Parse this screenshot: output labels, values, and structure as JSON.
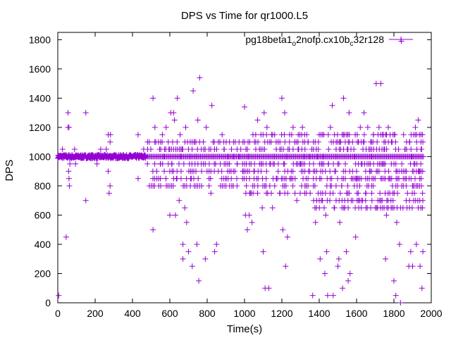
{
  "chart_data": {
    "type": "scatter",
    "title": "DPS vs Time for qr1000.L5",
    "xlabel": "Time(s)",
    "ylabel": "DPS",
    "xlim": [
      0,
      2000
    ],
    "ylim": [
      0,
      1850
    ],
    "xticks": [
      0,
      200,
      400,
      600,
      800,
      1000,
      1200,
      1400,
      1600,
      1800,
      2000
    ],
    "yticks": [
      0,
      200,
      400,
      600,
      800,
      1000,
      1200,
      1400,
      1600,
      1800
    ],
    "grid": false,
    "legend_position": "top-right",
    "marker": "plus",
    "series": [
      {
        "name_parts": [
          "pg18beta1",
          "o",
          "2nofp.cx10b",
          "c",
          "32r128"
        ],
        "color": "#9400d3",
        "points": [
          [
            5,
            50
          ],
          [
            15,
            1000
          ],
          [
            25,
            1050
          ],
          [
            35,
            1000
          ],
          [
            45,
            450
          ],
          [
            50,
            1000
          ],
          [
            55,
            1200
          ],
          [
            55,
            1300
          ],
          [
            58,
            900
          ],
          [
            60,
            850
          ],
          [
            60,
            1200
          ],
          [
            62,
            800
          ],
          [
            65,
            950
          ],
          [
            70,
            1000
          ],
          [
            80,
            1000
          ],
          [
            90,
            1050
          ],
          [
            95,
            950
          ],
          [
            100,
            1000
          ],
          [
            110,
            1000
          ],
          [
            130,
            1000
          ],
          [
            150,
            700
          ],
          [
            150,
            1300
          ],
          [
            160,
            1000
          ],
          [
            180,
            1000
          ],
          [
            200,
            1000
          ],
          [
            210,
            950
          ],
          [
            220,
            1000
          ],
          [
            230,
            1050
          ],
          [
            240,
            1000
          ],
          [
            250,
            1000
          ],
          [
            260,
            1050
          ],
          [
            270,
            900
          ],
          [
            270,
            1150
          ],
          [
            275,
            750
          ],
          [
            280,
            800
          ],
          [
            280,
            1100
          ],
          [
            282,
            1150
          ],
          [
            290,
            1000
          ],
          [
            300,
            1000
          ],
          [
            320,
            1000
          ],
          [
            340,
            1000
          ],
          [
            360,
            1000
          ],
          [
            380,
            1000
          ],
          [
            400,
            1000
          ],
          [
            420,
            1000
          ],
          [
            430,
            850
          ],
          [
            430,
            1150
          ],
          [
            450,
            1000
          ],
          [
            460,
            1050
          ],
          [
            480,
            950
          ],
          [
            490,
            1100
          ],
          [
            500,
            1000
          ],
          [
            510,
            1400
          ],
          [
            510,
            500
          ],
          [
            520,
            1200
          ],
          [
            525,
            1100
          ],
          [
            530,
            900
          ],
          [
            540,
            850
          ],
          [
            545,
            1050
          ],
          [
            550,
            950
          ],
          [
            560,
            1150
          ],
          [
            570,
            1000
          ],
          [
            580,
            1200
          ],
          [
            590,
            800
          ],
          [
            595,
            1050
          ],
          [
            600,
            600
          ],
          [
            605,
            1300
          ],
          [
            610,
            950
          ],
          [
            615,
            1100
          ],
          [
            620,
            1300
          ],
          [
            625,
            1250
          ],
          [
            630,
            600
          ],
          [
            635,
            850
          ],
          [
            640,
            1400
          ],
          [
            650,
            700
          ],
          [
            655,
            1150
          ],
          [
            660,
            1000
          ],
          [
            665,
            1050
          ],
          [
            670,
            300
          ],
          [
            670,
            400
          ],
          [
            675,
            950
          ],
          [
            680,
            650
          ],
          [
            685,
            1200
          ],
          [
            690,
            550
          ],
          [
            690,
            800
          ],
          [
            695,
            1100
          ],
          [
            700,
            350
          ],
          [
            705,
            950
          ],
          [
            710,
            1000
          ],
          [
            715,
            850
          ],
          [
            720,
            250
          ],
          [
            725,
            1450
          ],
          [
            730,
            1100
          ],
          [
            735,
            950
          ],
          [
            740,
            1000
          ],
          [
            745,
            400
          ],
          [
            750,
            1250
          ],
          [
            755,
            150
          ],
          [
            760,
            1540
          ],
          [
            770,
            900
          ],
          [
            780,
            950
          ],
          [
            790,
            300
          ],
          [
            795,
            1200
          ],
          [
            800,
            1000
          ],
          [
            810,
            1050
          ],
          [
            820,
            750
          ],
          [
            825,
            1350
          ],
          [
            830,
            1000
          ],
          [
            840,
            350
          ],
          [
            845,
            950
          ],
          [
            850,
            400
          ],
          [
            860,
            1100
          ],
          [
            870,
            950
          ],
          [
            880,
            1150
          ],
          [
            890,
            1050
          ],
          [
            900,
            850
          ],
          [
            910,
            1000
          ],
          [
            920,
            900
          ],
          [
            930,
            1050
          ],
          [
            940,
            1000
          ],
          [
            950,
            1100
          ],
          [
            960,
            950
          ],
          [
            970,
            1000
          ],
          [
            980,
            1050
          ],
          [
            990,
            900
          ],
          [
            1000,
            1340
          ],
          [
            1005,
            600
          ],
          [
            1010,
            850
          ],
          [
            1015,
            500
          ],
          [
            1020,
            1000
          ],
          [
            1025,
            600
          ],
          [
            1030,
            750
          ],
          [
            1035,
            950
          ],
          [
            1040,
            550
          ],
          [
            1050,
            900
          ],
          [
            1060,
            1150
          ],
          [
            1065,
            850
          ],
          [
            1070,
            1250
          ],
          [
            1080,
            1050
          ],
          [
            1090,
            950
          ],
          [
            1095,
            650
          ],
          [
            1100,
            350
          ],
          [
            1105,
            1300
          ],
          [
            1110,
            100
          ],
          [
            1115,
            800
          ],
          [
            1120,
            1200
          ],
          [
            1130,
            100
          ],
          [
            1140,
            950
          ],
          [
            1150,
            650
          ],
          [
            1160,
            1000
          ],
          [
            1170,
            850
          ],
          [
            1180,
            1100
          ],
          [
            1190,
            750
          ],
          [
            1200,
            1400
          ],
          [
            1205,
            500
          ],
          [
            1210,
            950
          ],
          [
            1215,
            1300
          ],
          [
            1220,
            250
          ],
          [
            1225,
            1000
          ],
          [
            1230,
            450
          ],
          [
            1240,
            1050
          ],
          [
            1250,
            850
          ],
          [
            1260,
            1200
          ],
          [
            1270,
            1100
          ],
          [
            1280,
            700
          ],
          [
            1290,
            1050
          ],
          [
            1300,
            950
          ],
          [
            1310,
            1200
          ],
          [
            1320,
            1000
          ],
          [
            1330,
            850
          ],
          [
            1340,
            1100
          ],
          [
            1350,
            1000
          ],
          [
            1360,
            1050
          ],
          [
            1365,
            50
          ],
          [
            1370,
            900
          ],
          [
            1380,
            550
          ],
          [
            1390,
            1000
          ],
          [
            1400,
            700
          ],
          [
            1405,
            300
          ],
          [
            1410,
            850
          ],
          [
            1420,
            1000
          ],
          [
            1430,
            200
          ],
          [
            1435,
            600
          ],
          [
            1440,
            350
          ],
          [
            1445,
            50
          ],
          [
            1450,
            950
          ],
          [
            1460,
            1200
          ],
          [
            1465,
            800
          ],
          [
            1470,
            1350
          ],
          [
            1475,
            50
          ],
          [
            1480,
            650
          ],
          [
            1490,
            1000
          ],
          [
            1500,
            250
          ],
          [
            1505,
            300
          ],
          [
            1510,
            550
          ],
          [
            1515,
            1100
          ],
          [
            1520,
            800
          ],
          [
            1525,
            100
          ],
          [
            1530,
            1400
          ],
          [
            1540,
            900
          ],
          [
            1545,
            350
          ],
          [
            1550,
            1050
          ],
          [
            1555,
            150
          ],
          [
            1560,
            1300
          ],
          [
            1565,
            200
          ],
          [
            1570,
            1050
          ],
          [
            1580,
            700
          ],
          [
            1590,
            1000
          ],
          [
            1595,
            450
          ],
          [
            1600,
            850
          ],
          [
            1610,
            1100
          ],
          [
            1620,
            1200
          ],
          [
            1630,
            950
          ],
          [
            1640,
            1300
          ],
          [
            1650,
            750
          ],
          [
            1660,
            1200
          ],
          [
            1670,
            900
          ],
          [
            1680,
            1000
          ],
          [
            1690,
            1150
          ],
          [
            1700,
            650
          ],
          [
            1705,
            1500
          ],
          [
            1710,
            1100
          ],
          [
            1720,
            1200
          ],
          [
            1725,
            750
          ],
          [
            1730,
            1500
          ],
          [
            1740,
            950
          ],
          [
            1750,
            1050
          ],
          [
            1755,
            300
          ],
          [
            1760,
            600
          ],
          [
            1770,
            1200
          ],
          [
            1780,
            850
          ],
          [
            1790,
            1100
          ],
          [
            1800,
            150
          ],
          [
            1805,
            1150
          ],
          [
            1810,
            50
          ],
          [
            1815,
            550
          ],
          [
            1820,
            800
          ],
          [
            1830,
            400
          ],
          [
            1835,
            0
          ],
          [
            1840,
            1790
          ],
          [
            1850,
            900
          ],
          [
            1860,
            1050
          ],
          [
            1870,
            650
          ],
          [
            1880,
            250
          ],
          [
            1885,
            1100
          ],
          [
            1890,
            350
          ],
          [
            1895,
            1000
          ],
          [
            1900,
            250
          ],
          [
            1910,
            750
          ],
          [
            1915,
            1200
          ],
          [
            1920,
            400
          ],
          [
            1930,
            1250
          ],
          [
            1935,
            900
          ],
          [
            1940,
            250
          ],
          [
            1945,
            1050
          ],
          [
            1950,
            100
          ],
          [
            1955,
            350
          ]
        ]
      }
    ],
    "dense_bands": [
      {
        "x_range": [
          0,
          470
        ],
        "y": 1000,
        "step": 1.5,
        "jitter": 12
      },
      {
        "x_range": [
          470,
          1960
        ],
        "y": 1000,
        "step": 6,
        "jitter": 0
      }
    ],
    "scatter_columns": [
      {
        "x_range": [
          480,
          980
        ],
        "y_levels": [
          1050,
          950,
          900,
          850,
          800,
          1100
        ],
        "step": 10
      },
      {
        "x_range": [
          990,
          1360
        ],
        "y_levels": [
          1100,
          1050,
          950,
          900,
          850,
          800,
          750,
          1150
        ],
        "step": 9
      },
      {
        "x_range": [
          1370,
          1960
        ],
        "y_levels": [
          1050,
          950,
          900,
          850,
          800,
          750,
          700,
          650,
          1100,
          1150
        ],
        "step": 8
      }
    ]
  }
}
